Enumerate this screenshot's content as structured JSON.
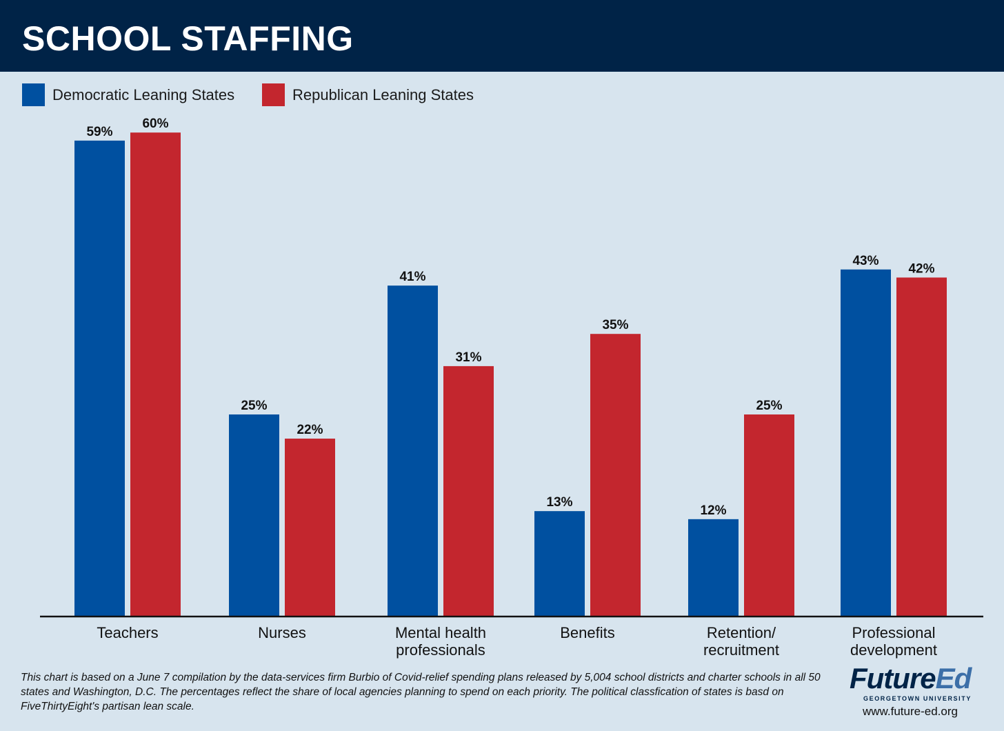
{
  "header": {
    "title": "SCHOOL STAFFING"
  },
  "colors": {
    "header_bg": "#002347",
    "background": "#d7e4ee",
    "democratic": "#0050a0",
    "republican": "#c3262e",
    "logo_accent": "#3c6fa8"
  },
  "chart_data": {
    "type": "bar",
    "title": "SCHOOL STAFFING",
    "categories": [
      [
        "Teachers"
      ],
      [
        "Nurses"
      ],
      [
        "Mental health",
        "professionals"
      ],
      [
        "Benefits"
      ],
      [
        "Retention/",
        "recruitment"
      ],
      [
        "Professional",
        "development"
      ]
    ],
    "series": [
      {
        "name": "Democratic Leaning States",
        "color": "#0050a0",
        "values": [
          59,
          25,
          41,
          13,
          12,
          43
        ],
        "labels": [
          "59%",
          "25%",
          "41%",
          "13%",
          "12%",
          "43%"
        ]
      },
      {
        "name": "Republican Leaning States",
        "color": "#c3262e",
        "values": [
          60,
          22,
          31,
          35,
          25,
          42
        ],
        "labels": [
          "60%",
          "22%",
          "31%",
          "35%",
          "25%",
          "42%"
        ]
      }
    ],
    "ylim": [
      0,
      60
    ],
    "grid": false,
    "legend": "top-left",
    "xlabel": "",
    "ylabel": ""
  },
  "footnote": "This chart is based on a June 7 compilation by the data-services firm Burbio of Covid-relief spending plans released by 5,004 school districts and charter schools in all 50 states and Washington, D.C. The percentages reflect the share of local agencies planning to spend on each priority. The political classfication of states is basd on FiveThirtyEight's partisan lean scale.",
  "logo": {
    "part1": "Future",
    "part2": "Ed",
    "subtitle": "GEORGETOWN UNIVERSITY",
    "url": "www.future-ed.org"
  }
}
